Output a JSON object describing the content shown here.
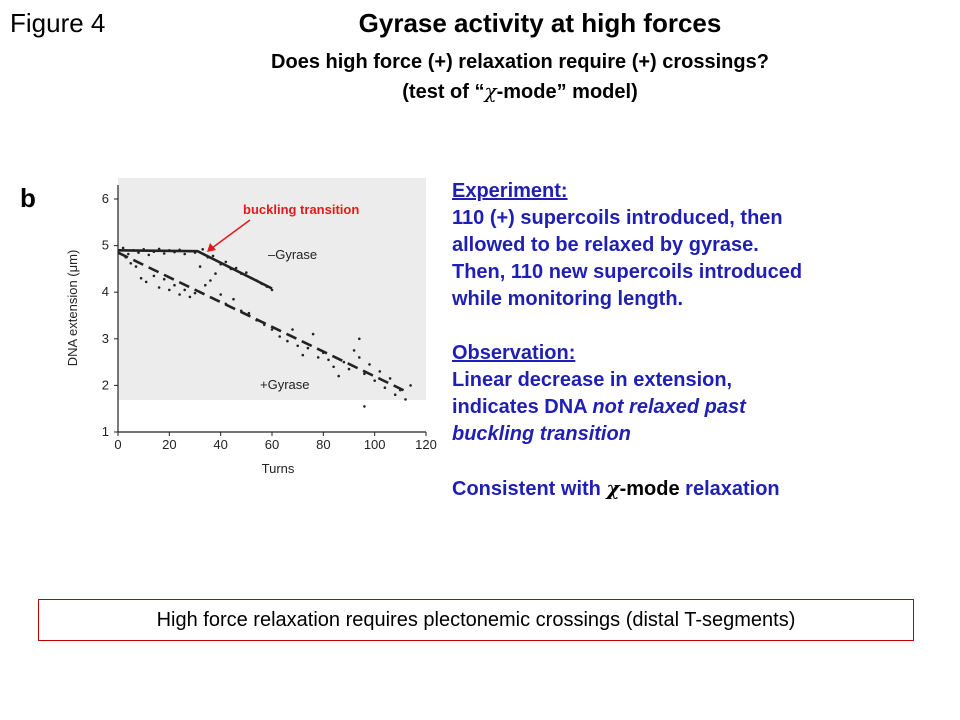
{
  "figure_label": "Figure 4",
  "title": "Gyrase activity at high forces",
  "subtitle": {
    "line1": "Does high force (+) relaxation require (+) crossings?",
    "line2_pre": "(test of “",
    "line2_chi": "χ",
    "line2_post": "-mode” model)"
  },
  "panel_label": "b",
  "annotation": "buckling transition",
  "chart_data": {
    "type": "scatter",
    "xlabel": "Turns",
    "ylabel": "DNA extension (μm)",
    "xlim": [
      0,
      120
    ],
    "ylim": [
      1,
      6.3
    ],
    "xticks": [
      0,
      20,
      40,
      60,
      80,
      100,
      120
    ],
    "yticks": [
      1,
      2,
      3,
      4,
      5,
      6
    ],
    "grid": false,
    "series": [
      {
        "name": "–Gyrase",
        "fit": [
          [
            0,
            4.9
          ],
          [
            31,
            4.88
          ],
          [
            60,
            4.08
          ]
        ],
        "points": [
          [
            2,
            4.95
          ],
          [
            4,
            4.82
          ],
          [
            6,
            4.9
          ],
          [
            8,
            4.85
          ],
          [
            10,
            4.92
          ],
          [
            12,
            4.8
          ],
          [
            14,
            4.87
          ],
          [
            16,
            4.93
          ],
          [
            18,
            4.83
          ],
          [
            20,
            4.9
          ],
          [
            22,
            4.86
          ],
          [
            24,
            4.91
          ],
          [
            26,
            4.82
          ],
          [
            28,
            4.88
          ],
          [
            30,
            4.85
          ],
          [
            33,
            4.92
          ],
          [
            35,
            4.75
          ],
          [
            37,
            4.78
          ],
          [
            40,
            4.6
          ],
          [
            42,
            4.65
          ],
          [
            44,
            4.5
          ],
          [
            46,
            4.52
          ],
          [
            48,
            4.4
          ],
          [
            50,
            4.42
          ],
          [
            52,
            4.3
          ],
          [
            54,
            4.25
          ],
          [
            56,
            4.18
          ],
          [
            58,
            4.12
          ],
          [
            60,
            4.05
          ]
        ]
      },
      {
        "name": "+Gyrase",
        "fit": [
          [
            0,
            4.85
          ],
          [
            113,
            1.85
          ]
        ],
        "points": [
          [
            1,
            4.9
          ],
          [
            3,
            4.75
          ],
          [
            5,
            4.62
          ],
          [
            7,
            4.55
          ],
          [
            9,
            4.3
          ],
          [
            11,
            4.22
          ],
          [
            14,
            4.35
          ],
          [
            16,
            4.1
          ],
          [
            18,
            4.28
          ],
          [
            20,
            4.05
          ],
          [
            22,
            4.15
          ],
          [
            24,
            3.95
          ],
          [
            26,
            4.05
          ],
          [
            28,
            3.9
          ],
          [
            30,
            3.98
          ],
          [
            32,
            4.55
          ],
          [
            34,
            4.15
          ],
          [
            36,
            4.25
          ],
          [
            38,
            4.4
          ],
          [
            40,
            3.95
          ],
          [
            42,
            3.75
          ],
          [
            45,
            3.85
          ],
          [
            48,
            3.6
          ],
          [
            51,
            3.55
          ],
          [
            54,
            3.4
          ],
          [
            57,
            3.3
          ],
          [
            60,
            3.2
          ],
          [
            63,
            3.05
          ],
          [
            66,
            2.95
          ],
          [
            68,
            3.2
          ],
          [
            70,
            2.85
          ],
          [
            72,
            2.65
          ],
          [
            74,
            2.8
          ],
          [
            76,
            3.1
          ],
          [
            78,
            2.6
          ],
          [
            80,
            2.7
          ],
          [
            82,
            2.55
          ],
          [
            84,
            2.4
          ],
          [
            86,
            2.2
          ],
          [
            88,
            2.5
          ],
          [
            90,
            2.35
          ],
          [
            92,
            2.75
          ],
          [
            94,
            2.6
          ],
          [
            96,
            2.25
          ],
          [
            98,
            2.45
          ],
          [
            100,
            2.1
          ],
          [
            102,
            2.3
          ],
          [
            104,
            1.95
          ],
          [
            106,
            2.15
          ],
          [
            108,
            1.8
          ],
          [
            110,
            1.9
          ],
          [
            112,
            1.7
          ],
          [
            114,
            2.0
          ],
          [
            96,
            1.55
          ],
          [
            94,
            3.0
          ]
        ]
      }
    ]
  },
  "right_text": {
    "experiment_heading": "Experiment:",
    "experiment_lines": [
      "110 (+) supercoils introduced, then",
      "allowed to be relaxed by gyrase.",
      "Then, 110 new supercoils introduced",
      "while monitoring length."
    ],
    "observation_heading": "Observation:",
    "observation_line1": "Linear decrease in extension,",
    "observation_line2_pre": "indicates DNA ",
    "observation_line2_italic": "not relaxed past",
    "observation_line3_italic": "buckling transition",
    "consistent_pre": "Consistent with ",
    "consistent_chi": "χ",
    "consistent_mid": "-mode",
    "consistent_post": " relaxation"
  },
  "conclusion": "High force relaxation requires plectonemic crossings (distal T-segments)",
  "colors": {
    "text_blue": "#1f1fb4",
    "annotation_red": "#e31a1a",
    "box_border": "#c00000",
    "chart_ink": "#222222"
  }
}
